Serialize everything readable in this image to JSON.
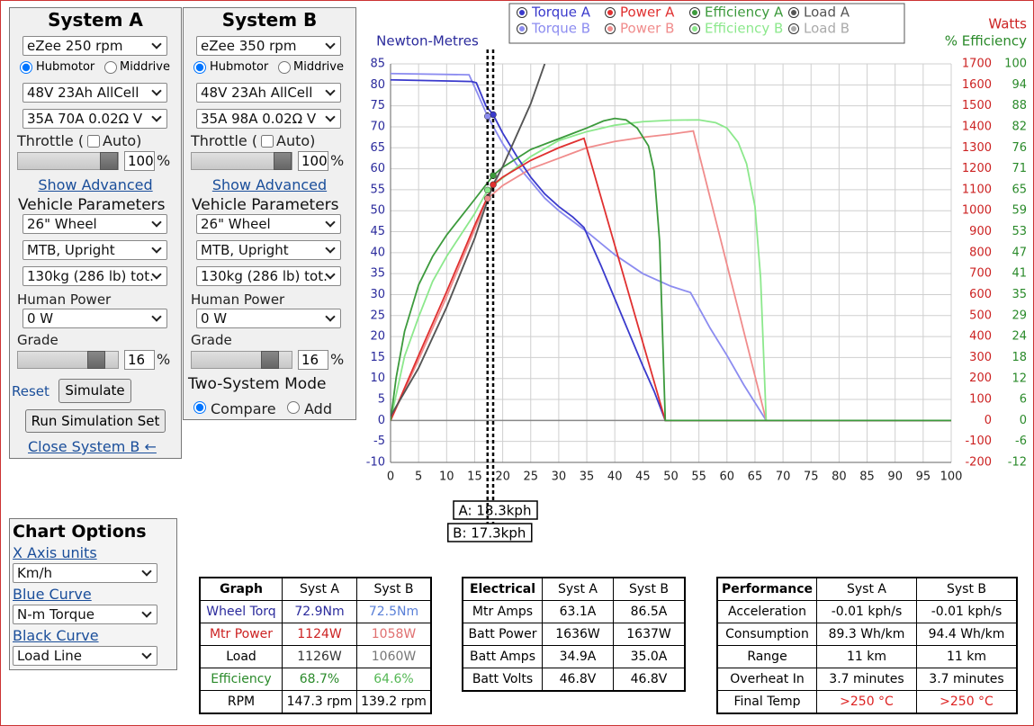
{
  "system_a": {
    "title": "System A",
    "motor": "eZee 250 rpm",
    "motor_types": [
      "Hubmotor",
      "Middrive"
    ],
    "battery": "48V 23Ah AllCell",
    "controller": "35A 70A 0.02Ω V",
    "throttle_label": "Throttle (",
    "auto_label": "Auto)",
    "throttle": 100,
    "throttle_unit": "%",
    "show_advanced": "Show Advanced",
    "vehicle_title": "Vehicle Parameters",
    "wheel": "26\"  Wheel",
    "frame": "MTB, Upright",
    "weight": "130kg (286 lb) tot.",
    "human_label": "Human Power",
    "human": "0 W",
    "grade_label": "Grade",
    "grade": 16,
    "grade_unit": "%",
    "reset": "Reset",
    "simulate": "Simulate",
    "run_set": "Run Simulation Set",
    "close_b": "Close System B ←"
  },
  "system_b": {
    "title": "System B",
    "motor": "eZee 350 rpm",
    "motor_types": [
      "Hubmotor",
      "Middrive"
    ],
    "battery": "48V 23Ah AllCell",
    "controller": "35A 98A 0.02Ω V",
    "throttle_label": "Throttle (",
    "auto_label": "Auto)",
    "throttle": 100,
    "throttle_unit": "%",
    "show_advanced": "Show Advanced",
    "vehicle_title": "Vehicle Parameters",
    "wheel": "26\"  Wheel",
    "frame": "MTB, Upright",
    "weight": "130kg (286 lb) tot.",
    "human_label": "Human Power",
    "human": "0 W",
    "grade_label": "Grade",
    "grade": 16,
    "grade_unit": "%",
    "mode_title": "Two-System Mode",
    "modes": [
      "Compare",
      "Add"
    ]
  },
  "chart_options": {
    "title": "Chart Options",
    "x_units_label": "X Axis units",
    "x_units": "Km/h",
    "blue_label": "Blue Curve",
    "blue": "N-m Torque",
    "black_label": "Black Curve",
    "black": "Load Line"
  },
  "chart_data": {
    "type": "line",
    "y_label": "Newton-Metres",
    "y2_label": "Watts",
    "y3_label": "% Efficiency",
    "y_color": "#2a2a9c",
    "y2_color": "#cc2222",
    "y3_color": "#2a8a2a",
    "grid": true,
    "xlim": [
      0,
      100
    ],
    "xticks": [
      0,
      5,
      10,
      15,
      20,
      25,
      30,
      35,
      40,
      45,
      50,
      55,
      60,
      65,
      70,
      75,
      80,
      85,
      90,
      95,
      100
    ],
    "ylim": [
      -10,
      85
    ],
    "yticks": [
      -10,
      -5,
      0,
      5,
      10,
      15,
      20,
      25,
      30,
      35,
      40,
      45,
      50,
      55,
      60,
      65,
      70,
      75,
      80,
      85
    ],
    "y2lim": [
      -200,
      1700
    ],
    "y2ticks": [
      -200,
      -100,
      0,
      100,
      200,
      300,
      400,
      500,
      600,
      700,
      800,
      900,
      1000,
      1100,
      1200,
      1300,
      1400,
      1500,
      1600,
      1700
    ],
    "y3lim": [
      -11.76,
      100
    ],
    "y3ticks": [
      {
        "value": -11.76,
        "label": "-12"
      },
      {
        "value": -5.88,
        "label": "-6"
      },
      0,
      {
        "value": 5.88,
        "label": "6"
      },
      {
        "value": 11.76,
        "label": "12"
      },
      {
        "value": 17.65,
        "label": "18"
      },
      {
        "value": 23.53,
        "label": "24"
      },
      {
        "value": 29.41,
        "label": "29"
      },
      {
        "value": 35.29,
        "label": "35"
      },
      {
        "value": 41.18,
        "label": "41"
      },
      {
        "value": 47.06,
        "label": "47"
      },
      {
        "value": 52.94,
        "label": "53"
      },
      {
        "value": 58.82,
        "label": "59"
      },
      {
        "value": 64.71,
        "label": "65"
      },
      {
        "value": 70.59,
        "label": "71"
      },
      {
        "value": 76.47,
        "label": "76"
      },
      {
        "value": 82.35,
        "label": "82"
      },
      {
        "value": 88.24,
        "label": "88"
      },
      {
        "value": 94.12,
        "label": "94"
      },
      100
    ],
    "series": [
      {
        "name": "Torque A",
        "color": "#3a3acc",
        "axis": "y",
        "x": [
          0,
          14.5,
          15.3,
          17,
          18.3,
          20,
          22.5,
          25,
          27.5,
          30,
          32.5,
          34.5,
          37.5,
          40,
          42.5,
          45,
          47,
          49,
          100
        ],
        "values": [
          81.2,
          80.8,
          80.5,
          75,
          72.9,
          68.5,
          63,
          58,
          54,
          51,
          48.5,
          46,
          37,
          29,
          21,
          13,
          7,
          0,
          0
        ]
      },
      {
        "name": "Power A",
        "color": "#e03030",
        "axis": "y2",
        "x": [
          0,
          5,
          10,
          15,
          18.3,
          20,
          25,
          30,
          34.5,
          49,
          100
        ],
        "values": [
          0,
          310,
          614,
          930,
          1124,
          1160,
          1240,
          1300,
          1345,
          0,
          0
        ]
      },
      {
        "name": "Efficiency A",
        "color": "#3c9a3c",
        "axis": "y3",
        "x": [
          0,
          1,
          2.5,
          5,
          7.5,
          10,
          12.5,
          15,
          18.3,
          20,
          25,
          30,
          35,
          38,
          40,
          42,
          44,
          46,
          47,
          48,
          48.5,
          49,
          100
        ],
        "values": [
          0,
          12,
          25,
          38,
          46,
          52,
          57,
          62,
          68.7,
          71,
          76,
          79,
          82,
          84,
          84.7,
          84.3,
          82,
          77,
          70,
          50,
          25,
          0,
          0
        ]
      },
      {
        "name": "Load A",
        "color": "#555555",
        "axis": "y2",
        "x": [
          0,
          5,
          10,
          15,
          18.3,
          20,
          25,
          27.5
        ],
        "values": [
          20,
          250,
          540,
          868,
          1126,
          1210,
          1510,
          1700
        ]
      },
      {
        "name": "Torque B",
        "color": "#8c8cf0",
        "axis": "y",
        "x": [
          0,
          14,
          15.5,
          17.3,
          20,
          22.5,
          25,
          27.5,
          30,
          32.5,
          35,
          40,
          45,
          50,
          53.5,
          57,
          60,
          63,
          67,
          100
        ],
        "values": [
          82.7,
          82.4,
          78,
          72.5,
          66,
          61,
          57,
          53,
          50,
          47.5,
          45,
          39.5,
          35,
          32,
          30.5,
          22,
          15.5,
          8.5,
          0,
          0
        ]
      },
      {
        "name": "Power B",
        "color": "#f08c8c",
        "axis": "y2",
        "x": [
          0,
          5,
          10,
          17.3,
          20,
          25,
          30,
          35,
          40,
          45,
          50,
          54,
          67,
          100
        ],
        "values": [
          0,
          290,
          590,
          1058,
          1120,
          1200,
          1250,
          1300,
          1330,
          1350,
          1365,
          1380,
          0,
          0
        ]
      },
      {
        "name": "Efficiency B",
        "color": "#8ce88c",
        "axis": "y3",
        "x": [
          0,
          2.5,
          5,
          7.5,
          10,
          12.5,
          15,
          17.3,
          20,
          25,
          30,
          35,
          40,
          45,
          50,
          55,
          58,
          60,
          62,
          63.5,
          65,
          66,
          66.5,
          67,
          100
        ],
        "values": [
          0,
          18,
          29,
          39,
          46,
          52,
          58,
          64.6,
          68,
          74,
          78.5,
          81,
          82.8,
          83.8,
          84.2,
          84.3,
          83.5,
          82,
          78,
          72,
          60,
          40,
          20,
          0,
          0
        ]
      },
      {
        "name": "Load B",
        "color": "#aaaaaa",
        "axis": "y2",
        "x": [
          0,
          5,
          10,
          15,
          17.3,
          20,
          25,
          27.5
        ],
        "values": [
          20,
          250,
          540,
          868,
          1060,
          1210,
          1510,
          1700
        ]
      }
    ],
    "cursor_x": [
      18.3,
      17.3
    ],
    "cursor_labels": [
      "A: 18.3kph",
      "B: 17.3kph"
    ]
  },
  "graph_table": {
    "header": [
      "Graph",
      "Syst A",
      "Syst B"
    ],
    "rows": [
      [
        "Wheel Torq",
        "72.9Nm",
        "72.5Nm"
      ],
      [
        "Mtr Power",
        "1124W",
        "1058W"
      ],
      [
        "Load",
        "1126W",
        "1060W"
      ],
      [
        "Efficiency",
        "68.7%",
        "64.6%"
      ],
      [
        "RPM",
        "147.3 rpm",
        "139.2 rpm"
      ]
    ]
  },
  "electrical_table": {
    "header": [
      "Electrical",
      "Syst A",
      "Syst B"
    ],
    "rows": [
      [
        "Mtr Amps",
        "63.1A",
        "86.5A"
      ],
      [
        "Batt Power",
        "1636W",
        "1637W"
      ],
      [
        "Batt Amps",
        "34.9A",
        "35.0A"
      ],
      [
        "Batt Volts",
        "46.8V",
        "46.8V"
      ]
    ]
  },
  "performance_table": {
    "header": [
      "Performance",
      "Syst A",
      "Syst B"
    ],
    "rows": [
      [
        "Acceleration",
        "-0.01 kph/s",
        "-0.01 kph/s"
      ],
      [
        "Consumption",
        "89.3 Wh/km",
        "94.4 Wh/km"
      ],
      [
        "Range",
        "11 km",
        "11 km"
      ],
      [
        "Overheat In",
        "3.7 minutes",
        "3.7 minutes"
      ],
      [
        "Final Temp",
        ">250 °C",
        ">250 °C"
      ]
    ]
  }
}
